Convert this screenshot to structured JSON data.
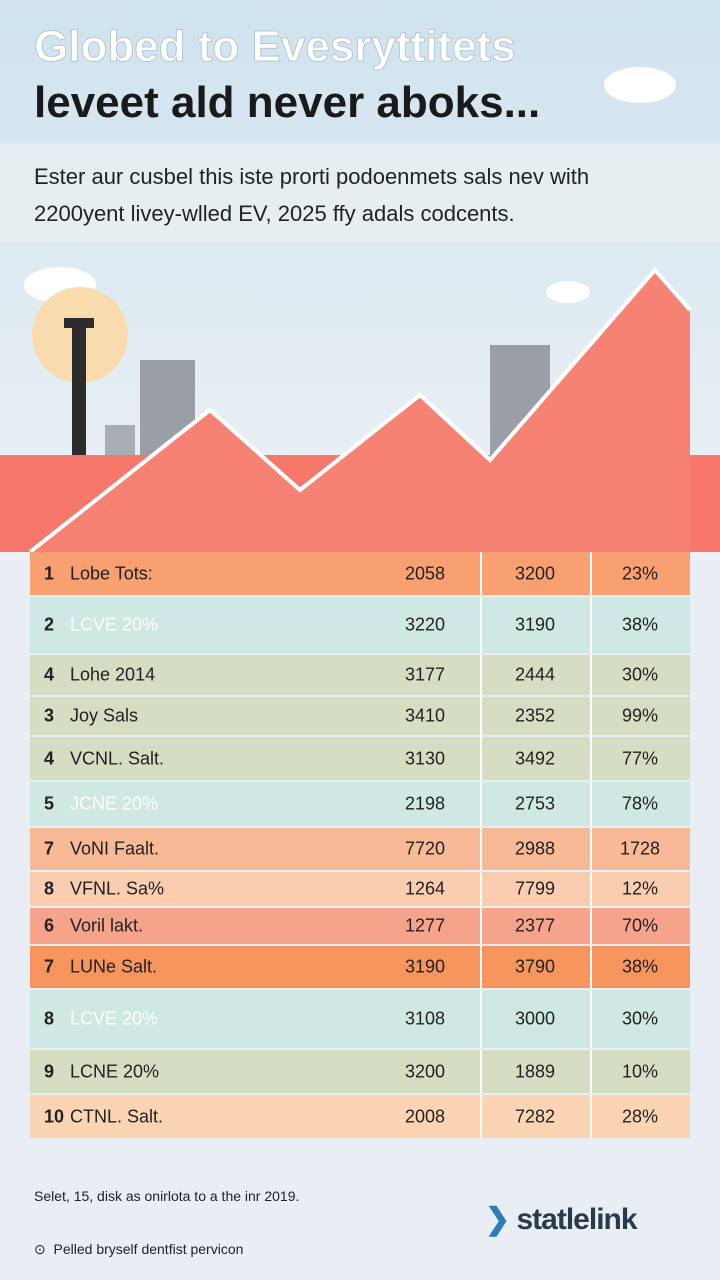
{
  "header": {
    "title": [
      "Globed to Evesryttitets",
      "leveet ald never aboks..."
    ],
    "intro": [
      "Ester aur cusbel this iste prorti podoenmets sals nev with",
      "2200yent livey-wlled EV, 2025 ffy adals codcents."
    ]
  },
  "table": {
    "rows": [
      {
        "rank": "1",
        "label": "Lobe Tots:",
        "cells": [
          "2058",
          "3200",
          "23%"
        ],
        "color": "#f9a071"
      },
      {
        "rank": "2",
        "label": "LCVE 20%",
        "cells": [
          "3220",
          "3190",
          "38%"
        ],
        "color": "#cfe8e3"
      },
      {
        "rank": "4",
        "label": "Lohe 2014",
        "cells": [
          "3177",
          "2444",
          "30%"
        ],
        "color": "#d5ddc2"
      },
      {
        "rank": "3",
        "label": "Joy Sals",
        "cells": [
          "3410",
          "2352",
          "99%"
        ],
        "color": "#d5ddc2"
      },
      {
        "rank": "4",
        "label": "VCNL. Salt.",
        "cells": [
          "3130",
          "3492",
          "77%"
        ],
        "color": "#d5ddc2"
      },
      {
        "rank": "5",
        "label": "JCNE 20%",
        "cells": [
          "2198",
          "2753",
          "78%"
        ],
        "color": "#cfe8e3"
      },
      {
        "rank": "7",
        "label": "VoNI Faalt.",
        "cells": [
          "7720",
          "2988",
          "1728"
        ],
        "color": "#f8b996"
      },
      {
        "rank": "8",
        "label": "VFNL. Sa%",
        "cells": [
          "1264",
          "7799",
          "12%"
        ],
        "color": "#fbcdb0"
      },
      {
        "rank": "6",
        "label": "Voril lakt.",
        "cells": [
          "1277",
          "2377",
          "70%"
        ],
        "color": "#f6a38b"
      },
      {
        "rank": "7",
        "label": "LUNe Salt.",
        "cells": [
          "3190",
          "3790",
          "38%"
        ],
        "color": "#f7955f"
      },
      {
        "rank": "8",
        "label": "LCVE 20%",
        "cells": [
          "3108",
          "3000",
          "30%"
        ],
        "color": "#cfe8e3"
      },
      {
        "rank": "9",
        "label": "LCNE 20%",
        "cells": [
          "3200",
          "1889",
          "10%"
        ],
        "color": "#d5ddc2"
      },
      {
        "rank": "10",
        "label": "CTNL. Salt.",
        "cells": [
          "2008",
          "7282",
          "28%"
        ],
        "color": "#fbd4b4"
      }
    ]
  },
  "footer": {
    "note": "Selet, 15, disk as onirlota to a the inr 2019.",
    "brand": "statlelink",
    "credit": "Pelled bryself dentfist pervicon"
  }
}
